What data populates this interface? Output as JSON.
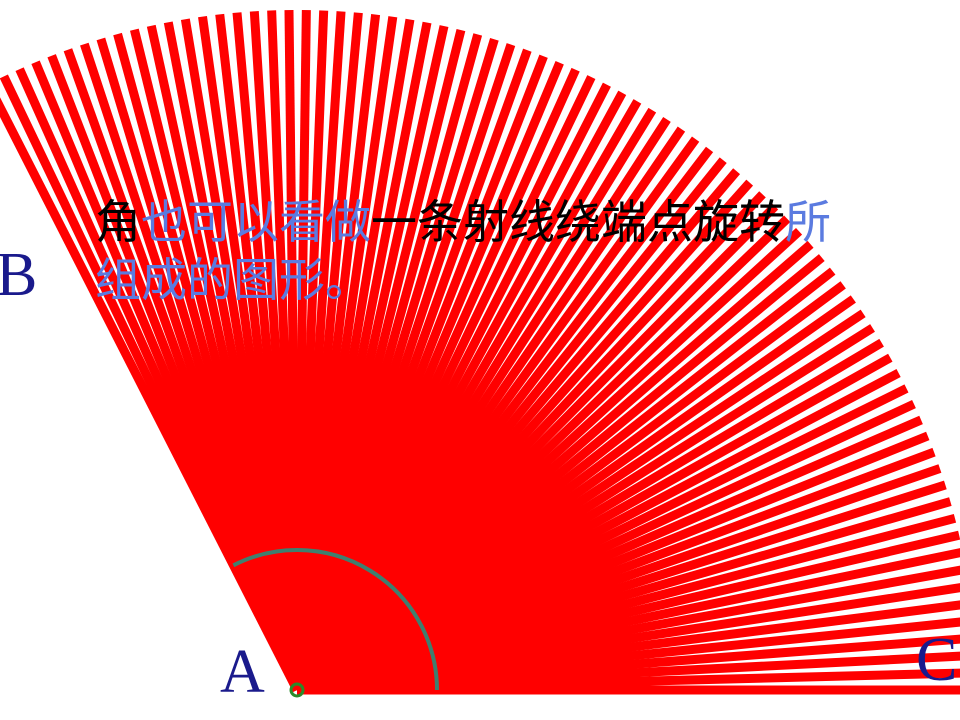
{
  "text": {
    "segments": [
      "角",
      "也可以看做",
      "一条射线绕端点旋转",
      "所",
      "组成的图形。"
    ]
  },
  "labels": {
    "a": "A",
    "b": "B",
    "c": "C"
  }
}
